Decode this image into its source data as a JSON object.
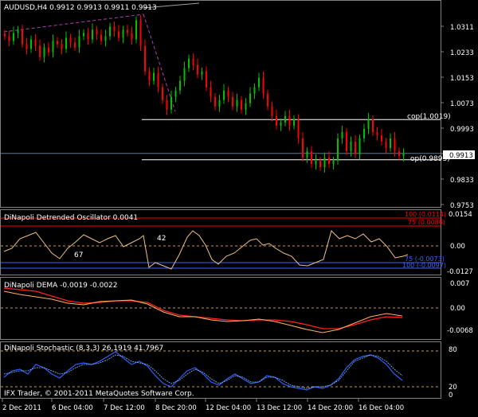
{
  "colors": {
    "background": "#000000",
    "frame": "#808080",
    "text": "#ffffff",
    "bull": "#00c000",
    "bear": "#ff0000",
    "osc_line": "#f0c080",
    "level_red": "#ff0000",
    "level_blue": "#4060ff",
    "dema_fast": "#ffb060",
    "dema_slow": "#ff2020",
    "stoch_main": "#3060ff",
    "stoch_signal": "#80c0ff",
    "dotted": "#c89640"
  },
  "main_panel": {
    "title": "AUDUSD,H4  0.9912 0.9913 0.9911 0.9913",
    "price_labels": [
      "1.0311",
      "1.0233",
      "1.0153",
      "1.0073",
      "0.9993",
      "0.9913",
      "0.9833",
      "0.9753"
    ],
    "current_price": "0.9913",
    "annotations": [
      {
        "name": "cop",
        "text": "cop(1.0019)"
      },
      {
        "name": "op",
        "text": "op(0.9893)"
      }
    ]
  },
  "osc_panel": {
    "title": "DiNapoli Detrended Oscillator  0.0041",
    "axis_labels": [
      "0.0154",
      "0.00",
      "-0.0127"
    ],
    "levels": [
      {
        "text": "100 (0.0114)",
        "color": "red"
      },
      {
        "text": "75 (0.0086)",
        "color": "red"
      },
      {
        "text": "75 (-0.0073)",
        "color": "blue"
      },
      {
        "text": "100 (-0.0097)",
        "color": "blue"
      }
    ],
    "labels": [
      "42",
      "67"
    ]
  },
  "dema_panel": {
    "title": "DiNapoli DEMA  -0.0019 -0.0022",
    "axis_labels": [
      "0.007",
      "0.00",
      "-0.0068"
    ]
  },
  "stoch_panel": {
    "title": "DiNapoli Stochastic (8,3,3) 26.1919 41.7967",
    "axis_labels": [
      "80",
      "20",
      "0"
    ],
    "copyright": "IFX Trader, © 2001-2011 MetaQuotes Software Corp."
  },
  "time_axis": [
    "2 Dec 2011",
    "6 Dec 04:00",
    "7 Dec 12:00",
    "8 Dec 20:00",
    "12 Dec 04:00",
    "13 Dec 12:00",
    "14 Dec 20:00",
    "16 Dec 04:00"
  ],
  "chart_data": {
    "type": "table",
    "symbol": "AUDUSD",
    "timeframe": "H4",
    "last_bar": {
      "open": 0.9912,
      "high": 0.9913,
      "low": 0.9911,
      "close": 0.9913
    },
    "price_axis": [
      1.0311,
      1.0233,
      1.0153,
      1.0073,
      0.9993,
      0.9913,
      0.9833,
      0.9753
    ],
    "levels": {
      "cop": 1.0019,
      "op": 0.9893
    },
    "indicators": {
      "detrended_oscillator": {
        "value": 0.0041,
        "levels": [
          0.0114,
          0.0086,
          -0.0073,
          -0.0097
        ],
        "axis": [
          0.0154,
          0.0,
          -0.0127
        ]
      },
      "dema": {
        "values": [
          -0.0019,
          -0.0022
        ],
        "axis": [
          0.007,
          0.0,
          -0.0068
        ]
      },
      "stochastic": {
        "params": [
          8,
          3,
          3
        ],
        "values": [
          26.1919,
          41.7967
        ],
        "axis": [
          80,
          20,
          0
        ]
      }
    }
  }
}
